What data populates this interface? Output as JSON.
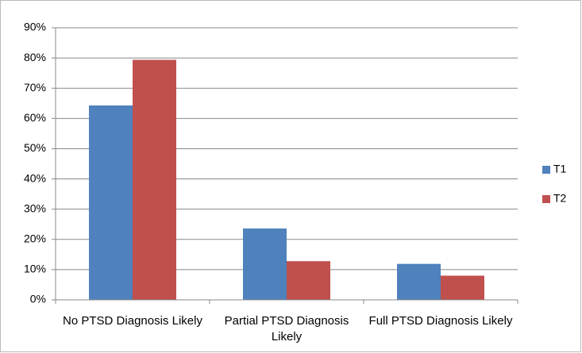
{
  "chart_data": {
    "type": "bar",
    "categories": [
      "No PTSD Diagnosis Likely",
      "Partial PTSD Diagnosis Likely",
      "Full PTSD Diagnosis Likely"
    ],
    "series": [
      {
        "name": "T1",
        "color": "#4f81bd",
        "values": [
          64.3,
          23.6,
          11.9
        ]
      },
      {
        "name": "T2",
        "color": "#c0504d",
        "values": [
          79.4,
          12.8,
          8.0
        ]
      }
    ],
    "ylim": [
      0,
      90
    ],
    "yticks": [
      {
        "value": 0,
        "label": "0%"
      },
      {
        "value": 10,
        "label": "10%"
      },
      {
        "value": 20,
        "label": "20%"
      },
      {
        "value": 30,
        "label": "30%"
      },
      {
        "value": 40,
        "label": "40%"
      },
      {
        "value": 50,
        "label": "50%"
      },
      {
        "value": 60,
        "label": "60%"
      },
      {
        "value": 70,
        "label": "70%"
      },
      {
        "value": 80,
        "label": "80%"
      },
      {
        "value": 90,
        "label": "90%"
      }
    ],
    "grid": true,
    "legend": "right"
  }
}
